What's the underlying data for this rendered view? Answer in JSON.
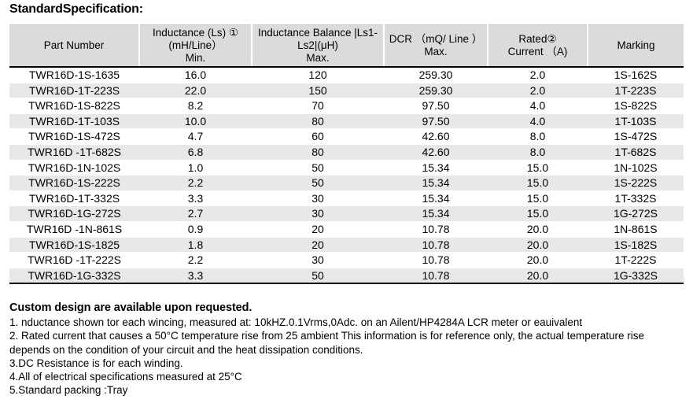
{
  "title": "StandardSpecification:",
  "colors": {
    "header_bg": "#dbdbdb",
    "stripe_bg": "#e8e8e8",
    "table_border": "#000000"
  },
  "table": {
    "columns": [
      {
        "id": "part-number",
        "lines": [
          "Part Number"
        ]
      },
      {
        "id": "inductance",
        "lines": [
          "Inductance (Ls) ①",
          "(mH/Line）",
          "Min."
        ]
      },
      {
        "id": "inductance-balance",
        "lines": [
          "Inductance Balance |Ls1-",
          "Ls2|(μH)",
          "Max."
        ]
      },
      {
        "id": "dcr",
        "lines": [
          "DCR （mQ/ Line ）",
          "Max."
        ]
      },
      {
        "id": "rated-current",
        "lines": [
          "Rated②",
          "Current （A)"
        ]
      },
      {
        "id": "marking",
        "lines": [
          "Marking"
        ]
      }
    ],
    "rows": [
      [
        "TWR16D-1S-1635",
        "16.0",
        "120",
        "259.30",
        "2.0",
        "1S-162S"
      ],
      [
        "TWR16D-1T-223S",
        "22.0",
        "150",
        "259.30",
        "2.0",
        "1T-223S"
      ],
      [
        "TWR16D-1S-822S",
        "8.2",
        "70",
        "97.50",
        "4.0",
        "1S-822S"
      ],
      [
        "TWR16D-1T-103S",
        "10.0",
        "80",
        "97.50",
        "4.0",
        "1T-103S"
      ],
      [
        "TWR16D-1S-472S",
        "4.7",
        "60",
        "42.60",
        "8.0",
        "1S-472S"
      ],
      [
        "TWR16D -1T-682S",
        "6.8",
        "80",
        "42.60",
        "8.0",
        "1T-682S"
      ],
      [
        "TWR16D-1N-102S",
        "1.0",
        "50",
        "15.34",
        "15.0",
        "1N-102S"
      ],
      [
        "TWR16D-1S-222S",
        "2.2",
        "50",
        "15.34",
        "15.0",
        "1S-222S"
      ],
      [
        "TWR16D-1T-332S",
        "3.3",
        "30",
        "15.34",
        "15.0",
        "1T-332S"
      ],
      [
        "TWR16D-1G-272S",
        "2.7",
        "30",
        "15.34",
        "15.0",
        "1G-272S"
      ],
      [
        "TWR16D -1N-861S",
        "0.9",
        "20",
        "10.78",
        "20.0",
        "1N-861S"
      ],
      [
        "TWR16D-1S-1825",
        "1.8",
        "20",
        "10.78",
        "20.0",
        "1S-182S"
      ],
      [
        "TWR16D -1T-222S",
        "2.2",
        "30",
        "10.78",
        "20.0",
        "1T-222S"
      ],
      [
        "TWR16D-1G-332S",
        "3.3",
        "50",
        "10.78",
        "20.0",
        "1G-332S"
      ]
    ]
  },
  "notes": {
    "heading": "Custom design are available upon requested.",
    "lines": [
      "1. nductance shown tor each wincing, measured at: 10kHZ.0.1Vrms,0Adc. on an Ailent/HP4284A LCR meter or eauivalent",
      "2. Rated current that causes a 50°C temperature rise from 25 ambient This information is for reference only, the actual temperature rise",
      "depends on the condition of your circuit and the heat dissipation conditions.",
      "3.DC Resistance is for each winding.",
      "4.All of electrical specifications measured at 25°C",
      "5.Standard packing :Tray"
    ]
  }
}
